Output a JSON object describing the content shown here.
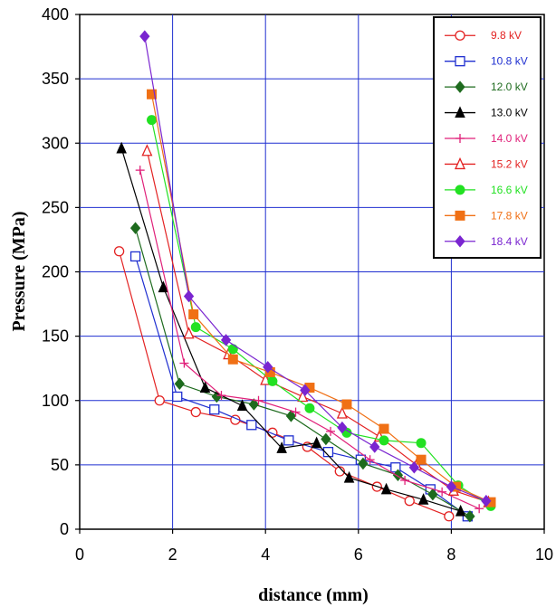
{
  "chart_data": {
    "type": "line",
    "title": "",
    "xlabel": "distance (mm)",
    "ylabel": "Pressure (MPa)",
    "xlim": [
      0,
      10
    ],
    "ylim": [
      0,
      400
    ],
    "xticks": [
      "0",
      "2",
      "4",
      "6",
      "8",
      "10"
    ],
    "yticks": [
      "0",
      "50",
      "100",
      "150",
      "200",
      "250",
      "300",
      "350",
      "400"
    ],
    "grid": true,
    "legend_position": "top-right",
    "series": [
      {
        "name": "9.8 kV",
        "color": "#e32222",
        "marker": "circle-open",
        "x": [
          0.85,
          1.72,
          2.5,
          3.35,
          4.15,
          4.9,
          5.6,
          6.4,
          7.1,
          7.95
        ],
        "y": [
          216,
          100,
          91,
          85,
          75,
          64,
          45,
          33,
          22,
          10
        ]
      },
      {
        "name": "10.8 kV",
        "color": "#1f2fd0",
        "marker": "square-open",
        "x": [
          1.2,
          2.1,
          2.9,
          3.7,
          4.5,
          5.35,
          6.05,
          6.8,
          7.55,
          8.35
        ],
        "y": [
          212,
          103,
          93,
          81,
          69,
          60,
          54,
          48,
          31,
          10
        ]
      },
      {
        "name": "12.0 kV",
        "color": "#1e6b1e",
        "marker": "diamond",
        "x": [
          1.2,
          2.15,
          2.95,
          3.75,
          4.55,
          5.3,
          6.1,
          6.85,
          7.6,
          8.4
        ],
        "y": [
          234,
          113,
          103,
          97,
          88,
          70,
          51,
          42,
          27,
          10
        ]
      },
      {
        "name": "13.0 kV",
        "color": "#000000",
        "marker": "triangle",
        "x": [
          0.9,
          1.8,
          2.7,
          3.5,
          4.35,
          5.1,
          5.8,
          6.6,
          7.4,
          8.2
        ],
        "y": [
          296,
          188,
          110,
          96,
          63,
          67,
          40,
          31,
          23,
          14
        ]
      },
      {
        "name": "14.0 kV",
        "color": "#e0217a",
        "marker": "plus",
        "x": [
          1.3,
          2.25,
          3.05,
          3.85,
          4.65,
          5.4,
          6.25,
          7.0,
          7.8,
          8.6
        ],
        "y": [
          279,
          129,
          104,
          100,
          91,
          76,
          54,
          38,
          29,
          16
        ]
      },
      {
        "name": "15.2 kV",
        "color": "#e32222",
        "marker": "triangle-open",
        "x": [
          1.45,
          2.35,
          3.2,
          4.0,
          4.8,
          5.65,
          6.45,
          7.25,
          8.05,
          8.8
        ],
        "y": [
          294,
          152,
          136,
          116,
          103,
          90,
          72,
          50,
          30,
          21
        ]
      },
      {
        "name": "16.6 kV",
        "color": "#22e122",
        "marker": "circle",
        "x": [
          1.55,
          2.5,
          3.3,
          4.15,
          4.95,
          5.75,
          6.55,
          7.35,
          8.15,
          8.85
        ],
        "y": [
          318,
          157,
          140,
          115,
          94,
          75,
          69,
          67,
          34,
          18
        ]
      },
      {
        "name": "17.8 kV",
        "color": "#f07015",
        "marker": "square",
        "x": [
          1.55,
          2.45,
          3.3,
          4.1,
          4.95,
          5.75,
          6.55,
          7.35,
          8.1,
          8.85
        ],
        "y": [
          338,
          167,
          132,
          122,
          110,
          97,
          78,
          54,
          33,
          21
        ]
      },
      {
        "name": "18.4 kV",
        "color": "#7a25d0",
        "marker": "diamond",
        "x": [
          1.4,
          2.35,
          3.15,
          4.05,
          4.85,
          5.65,
          6.35,
          7.2,
          8.0,
          8.75
        ],
        "y": [
          383,
          181,
          147,
          126,
          108,
          79,
          64,
          48,
          33,
          22
        ]
      }
    ]
  }
}
